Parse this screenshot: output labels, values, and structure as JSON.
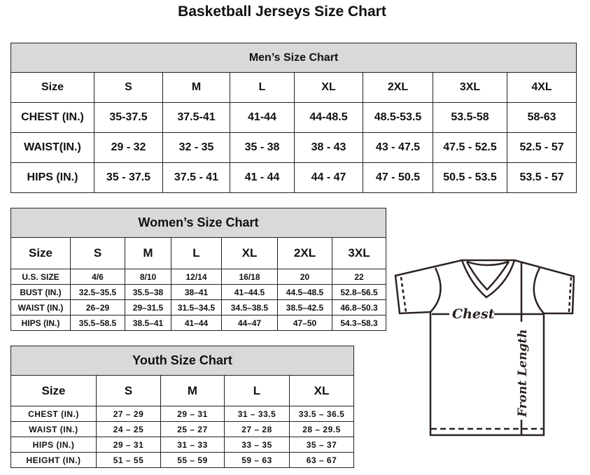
{
  "title": "Basketball Jerseys Size Chart",
  "men": {
    "title": "Men’s Size Chart",
    "header": [
      "Size",
      "S",
      "M",
      "L",
      "XL",
      "2XL",
      "3XL",
      "4XL"
    ],
    "rows": [
      [
        "CHEST (IN.)",
        "35-37.5",
        "37.5-41",
        "41-44",
        "44-48.5",
        "48.5-53.5",
        "53.5-58",
        "58-63"
      ],
      [
        "WAIST(IN.)",
        "29 - 32",
        "32 - 35",
        "35 - 38",
        "38 - 43",
        "43 - 47.5",
        "47.5 - 52.5",
        "52.5 - 57"
      ],
      [
        "HIPS (IN.)",
        "35 - 37.5",
        "37.5 - 41",
        "41 - 44",
        "44 - 47",
        "47 - 50.5",
        "50.5 - 53.5",
        "53.5 - 57"
      ]
    ]
  },
  "women": {
    "title": "Women’s Size Chart",
    "header": [
      "Size",
      "S",
      "M",
      "L",
      "XL",
      "2XL",
      "3XL"
    ],
    "rows": [
      [
        "U.S. SIZE",
        "4/6",
        "8/10",
        "12/14",
        "16/18",
        "20",
        "22"
      ],
      [
        "BUST (IN.)",
        "32.5–35.5",
        "35.5–38",
        "38–41",
        "41–44.5",
        "44.5–48.5",
        "52.8–56.5"
      ],
      [
        "WAIST (IN.)",
        "26–29",
        "29–31.5",
        "31.5–34.5",
        "34.5–38.5",
        "38.5–42.5",
        "46.8–50.3"
      ],
      [
        "HIPS (IN.)",
        "35.5–58.5",
        "38.5–41",
        "41–44",
        "44–47",
        "47–50",
        "54.3–58.3"
      ]
    ]
  },
  "youth": {
    "title": "Youth Size Chart",
    "header": [
      "Size",
      "S",
      "M",
      "L",
      "XL"
    ],
    "rows": [
      [
        "CHEST (IN.)",
        "27 – 29",
        "29 – 31",
        "31 – 33.5",
        "33.5 – 36.5"
      ],
      [
        "WAIST (IN.)",
        "24 – 25",
        "25 – 27",
        "27 – 28",
        "28 – 29.5"
      ],
      [
        "HIPS (IN.)",
        "29 – 31",
        "31 – 33",
        "33 – 35",
        "35 – 37"
      ],
      [
        "HEIGHT (IN.)",
        "51 – 55",
        "55 – 59",
        "59 – 63",
        "63 – 67"
      ]
    ]
  },
  "diagram": {
    "chest_label": "Chest",
    "length_label": "Front Length",
    "line_color": "#2b2220"
  }
}
